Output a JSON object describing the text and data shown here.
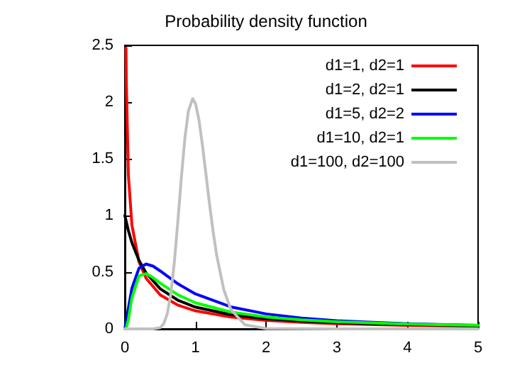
{
  "chart_data": {
    "type": "line",
    "title": "Probability density function",
    "xlim": [
      0,
      5
    ],
    "xticks": [
      0,
      1,
      2,
      3,
      4,
      5
    ],
    "ylim": [
      0,
      2.5
    ],
    "yticks": [
      0,
      0.5,
      1,
      1.5,
      2,
      2.5
    ],
    "grid": false,
    "legend": "top right",
    "marker": "none",
    "line_style": "solid",
    "series": [
      {
        "name": "d1=1, d2=1",
        "color": "#ff0000",
        "x": [
          0.016,
          0.02,
          0.05,
          0.1,
          0.2,
          0.3,
          0.5,
          0.75,
          1,
          1.5,
          2,
          2.5,
          3,
          4,
          5
        ],
        "values": [
          2.477,
          2.206,
          1.356,
          0.915,
          0.593,
          0.447,
          0.3,
          0.21,
          0.159,
          0.104,
          0.075,
          0.0575,
          0.046,
          0.032,
          0.0237
        ]
      },
      {
        "name": "d1=2, d2=1",
        "color": "#000000",
        "x": [
          0,
          0.05,
          0.1,
          0.2,
          0.3,
          0.5,
          0.75,
          1,
          1.5,
          2,
          2.5,
          3,
          4,
          5
        ],
        "values": [
          1,
          0.867,
          0.761,
          0.604,
          0.494,
          0.354,
          0.253,
          0.192,
          0.125,
          0.0894,
          0.068,
          0.054,
          0.037,
          0.0274
        ]
      },
      {
        "name": "d1=5, d2=2",
        "color": "#0000ff",
        "x": [
          0,
          0.05,
          0.1,
          0.2,
          0.3,
          0.4,
          0.5,
          0.75,
          1,
          1.5,
          2,
          2.5,
          3,
          4,
          5
        ],
        "values": [
          0,
          0.183,
          0.358,
          0.535,
          0.572,
          0.553,
          0.511,
          0.398,
          0.308,
          0.194,
          0.132,
          0.0952,
          0.0717,
          0.0447,
          0.0305
        ]
      },
      {
        "name": "d1=10, d2=1",
        "color": "#00ff00",
        "x": [
          0,
          0.02,
          0.05,
          0.1,
          0.2,
          0.3,
          0.4,
          0.5,
          0.75,
          1,
          1.5,
          2,
          2.5,
          3,
          4,
          5
        ],
        "values": [
          0,
          0.0072,
          0.0827,
          0.272,
          0.468,
          0.487,
          0.451,
          0.404,
          0.301,
          0.23,
          0.1485,
          0.1054,
          0.0794,
          0.0627,
          0.0424,
          0.0313
        ]
      },
      {
        "name": "d1=100, d2=100",
        "color": "#c0c0c0",
        "x": [
          0,
          0.4,
          0.5,
          0.55,
          0.6,
          0.65,
          0.7,
          0.75,
          0.8,
          0.85,
          0.9,
          0.96,
          1,
          1.05,
          1.1,
          1.15,
          1.2,
          1.25,
          1.3,
          1.4,
          1.5,
          1.7,
          2,
          3,
          5
        ],
        "values": [
          0,
          0.0002,
          0.011,
          0.045,
          0.132,
          0.306,
          0.584,
          0.946,
          1.335,
          1.682,
          1.923,
          2.03,
          1.988,
          1.839,
          1.613,
          1.354,
          1.094,
          0.855,
          0.649,
          0.347,
          0.172,
          0.036,
          0.0027,
          0,
          0
        ]
      }
    ]
  }
}
